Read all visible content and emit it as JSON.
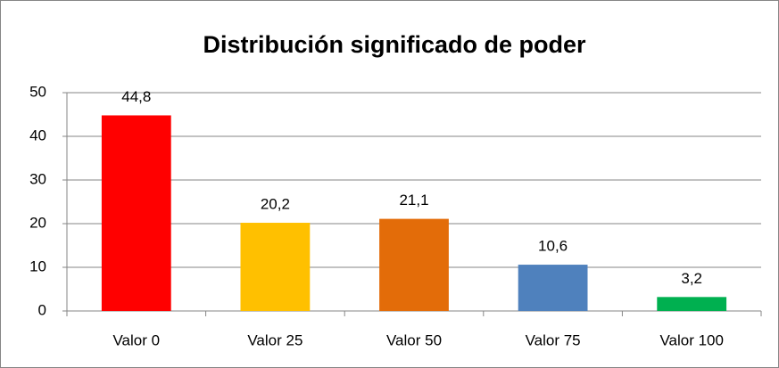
{
  "chart_data": {
    "type": "bar",
    "title": "Distribución significado de poder",
    "categories": [
      "Valor 0",
      "Valor 25",
      "Valor 50",
      "Valor 75",
      "Valor 100"
    ],
    "values": [
      44.8,
      20.2,
      21.1,
      10.6,
      3.2
    ],
    "value_labels": [
      "44,8",
      "20,2",
      "21,1",
      "10,6",
      "3,2"
    ],
    "colors": [
      "#ff0000",
      "#ffc000",
      "#e36c09",
      "#4f81bd",
      "#00b050"
    ],
    "ylim": [
      0,
      50
    ],
    "yticks": [
      0,
      10,
      20,
      30,
      40,
      50
    ],
    "grid": true
  }
}
